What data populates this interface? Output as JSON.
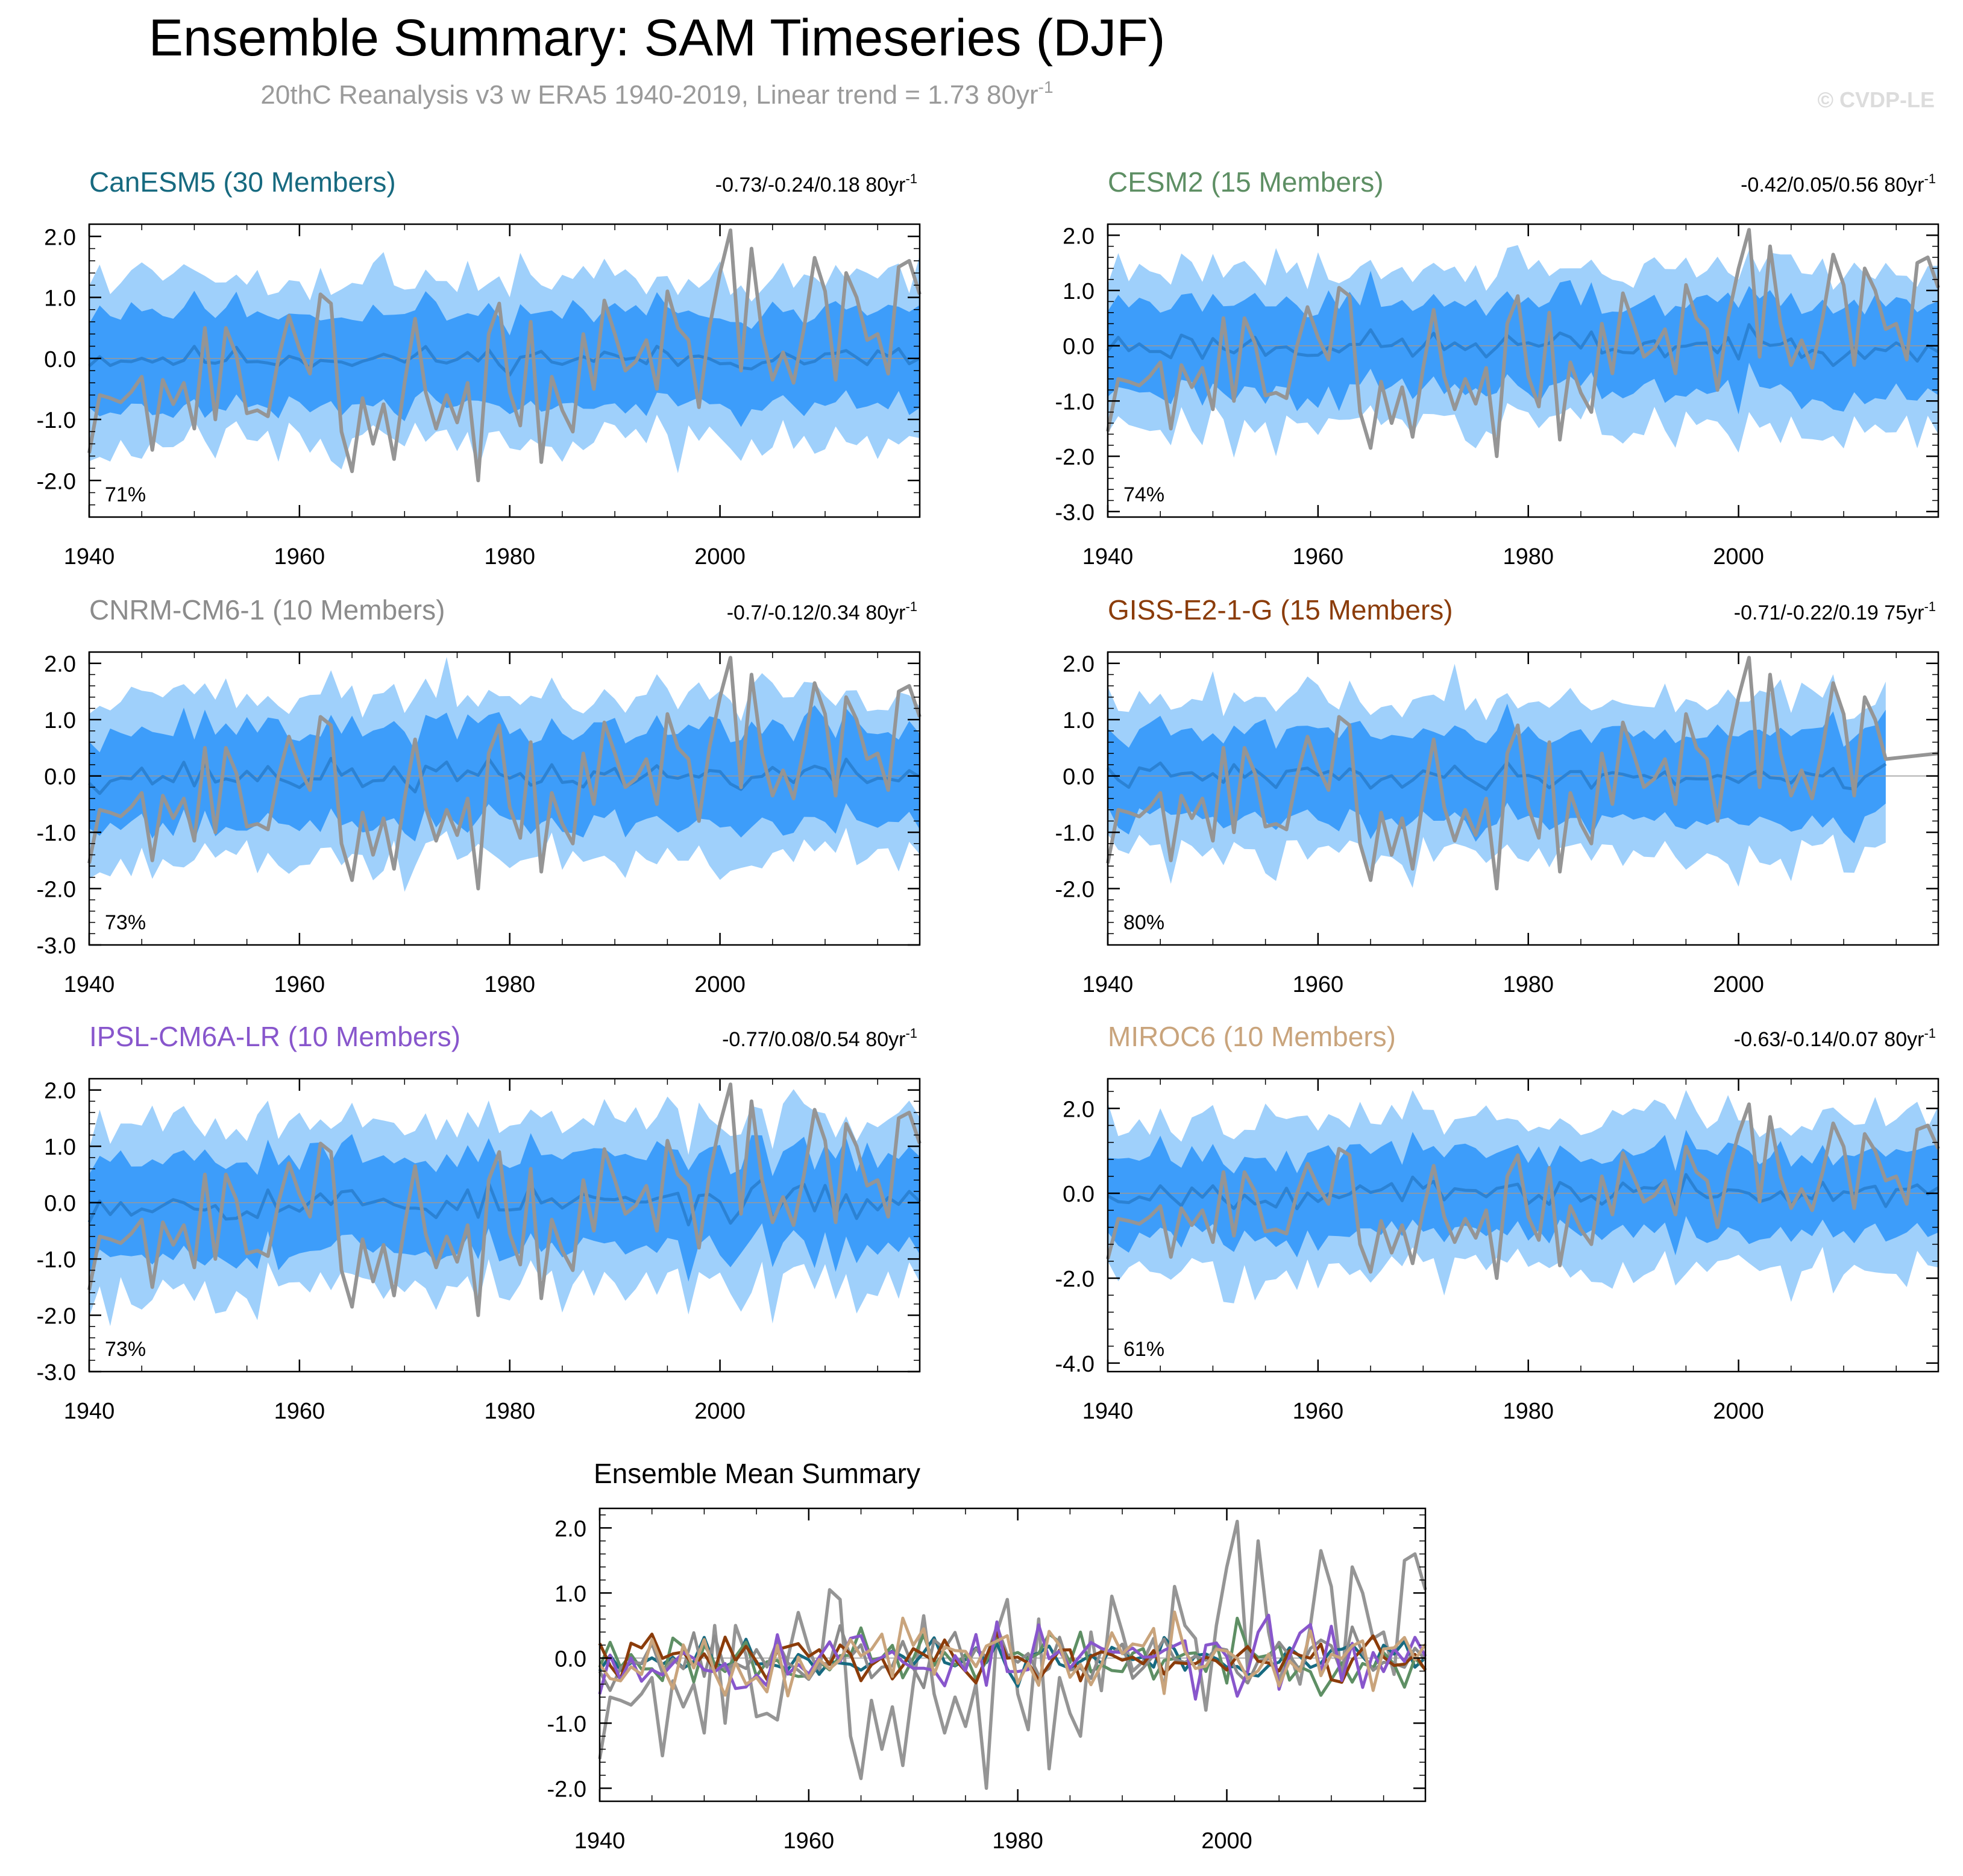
{
  "title": "Ensemble Summary: SAM Timeseries (DJF)",
  "subtitle": {
    "prefix": "20thC Reanalysis v3 w ERA5 1940-2019, Linear trend = 1.73 80yr",
    "exp": "-1"
  },
  "watermark": "© CVDP-LE",
  "colors": {
    "band_outer": "#9fd0fb",
    "band_inner": "#3d9dfa",
    "ens_mean": "#2b82d4",
    "observed": "#959595",
    "zero_line": "#999999",
    "axis": "#000000"
  },
  "chart_data": [
    {
      "type": "line",
      "name": "canesm5-panel",
      "model_label": "CanESM5 (30 Members)",
      "model_color": "#176a80",
      "trend_text": "-0.73/-0.24/0.18 80yr",
      "trend_exp": "-1",
      "percent": "71%",
      "years": [
        1940,
        2019
      ],
      "ylim": [
        -2.6,
        2.2
      ],
      "yticks": [
        2.0,
        1.0,
        0.0,
        -1.0,
        -2.0
      ],
      "ytick_labels": [
        "2.0",
        "1.0",
        "0.0",
        "-1.0",
        "-2.0"
      ],
      "xticks": [
        1940,
        1960,
        1980,
        2000
      ],
      "xtick_labels": [
        "1940",
        "1960",
        "1980",
        "2000"
      ],
      "seed": 11,
      "mean_amp": 0.18,
      "inner_amp": 0.75,
      "outer_amp": 1.35
    },
    {
      "type": "line",
      "name": "cesm2-panel",
      "model_label": "CESM2 (15 Members)",
      "model_color": "#5e8f64",
      "trend_text": "-0.42/0.05/0.56 80yr",
      "trend_exp": "-1",
      "percent": "74%",
      "years": [
        1940,
        2019
      ],
      "ylim": [
        -3.1,
        2.2
      ],
      "yticks": [
        2.0,
        1.0,
        0.0,
        -1.0,
        -2.0,
        -3.0
      ],
      "ytick_labels": [
        "2.0",
        "1.0",
        "0.0",
        "-1.0",
        "-2.0",
        "-3.0"
      ],
      "xticks": [
        1940,
        1960,
        1980,
        2000
      ],
      "xtick_labels": [
        "1940",
        "1960",
        "1980",
        "2000"
      ],
      "seed": 23,
      "mean_amp": 0.25,
      "inner_amp": 0.8,
      "outer_amp": 1.45
    },
    {
      "type": "line",
      "name": "cnrm-panel",
      "model_label": "CNRM-CM6-1 (10 Members)",
      "model_color": "#8c8c8c",
      "trend_text": "-0.7/-0.12/0.34 80yr",
      "trend_exp": "-1",
      "percent": "73%",
      "years": [
        1940,
        2019
      ],
      "ylim": [
        -3.0,
        2.2
      ],
      "yticks": [
        2.0,
        1.0,
        0.0,
        -1.0,
        -2.0,
        -3.0
      ],
      "ytick_labels": [
        "2.0",
        "1.0",
        "0.0",
        "-1.0",
        "-2.0",
        "-3.0"
      ],
      "xticks": [
        1940,
        1960,
        1980,
        2000
      ],
      "xtick_labels": [
        "1940",
        "1960",
        "1980",
        "2000"
      ],
      "seed": 37,
      "mean_amp": 0.25,
      "inner_amp": 0.85,
      "outer_amp": 1.5
    },
    {
      "type": "line",
      "name": "giss-panel",
      "model_label": "GISS-E2-1-G (15 Members)",
      "model_color": "#8b3c0a",
      "trend_text": "-0.71/-0.22/0.19 75yr",
      "trend_exp": "-1",
      "percent": "80%",
      "years": [
        1940,
        2014
      ],
      "ylim": [
        -3.0,
        2.2
      ],
      "yticks": [
        2.0,
        1.0,
        0.0,
        -1.0,
        -2.0
      ],
      "ytick_labels": [
        "2.0",
        "1.0",
        "0.0",
        "-1.0",
        "-2.0"
      ],
      "xticks": [
        1940,
        1960,
        1980,
        2000
      ],
      "xtick_labels": [
        "1940",
        "1960",
        "1980",
        "2000"
      ],
      "seed": 41,
      "mean_amp": 0.2,
      "inner_amp": 0.8,
      "outer_amp": 1.45
    },
    {
      "type": "line",
      "name": "ipsl-panel",
      "model_label": "IPSL-CM6A-LR (10 Members)",
      "model_color": "#8856cc",
      "trend_text": "-0.77/0.08/0.54 80yr",
      "trend_exp": "-1",
      "percent": "73%",
      "years": [
        1940,
        2019
      ],
      "ylim": [
        -3.0,
        2.2
      ],
      "yticks": [
        2.0,
        1.0,
        0.0,
        -1.0,
        -2.0,
        -3.0
      ],
      "ytick_labels": [
        "2.0",
        "1.0",
        "0.0",
        "-1.0",
        "-2.0",
        "-3.0"
      ],
      "xticks": [
        1940,
        1960,
        1980,
        2000
      ],
      "xtick_labels": [
        "1940",
        "1960",
        "1980",
        "2000"
      ],
      "seed": 53,
      "mean_amp": 0.3,
      "inner_amp": 0.85,
      "outer_amp": 1.55
    },
    {
      "type": "line",
      "name": "miroc6-panel",
      "model_label": "MIROC6 (10 Members)",
      "model_color": "#c9a47c",
      "trend_text": "-0.63/-0.14/0.07 80yr",
      "trend_exp": "-1",
      "percent": "61%",
      "years": [
        1940,
        2019
      ],
      "ylim": [
        -4.2,
        2.7
      ],
      "yticks": [
        2.0,
        0.0,
        -2.0,
        -4.0
      ],
      "ytick_labels": [
        "2.0",
        "0.0",
        "-2.0",
        "-4.0"
      ],
      "xticks": [
        1940,
        1960,
        1980,
        2000
      ],
      "xtick_labels": [
        "1940",
        "1960",
        "1980",
        "2000"
      ],
      "seed": 67,
      "mean_amp": 0.3,
      "inner_amp": 0.95,
      "outer_amp": 1.85
    }
  ],
  "ensemble_mean_summary": {
    "title": "Ensemble Mean Summary",
    "years": [
      1940,
      2019
    ],
    "ylim": [
      -2.2,
      2.3
    ],
    "yticks": [
      2.0,
      1.0,
      0.0,
      -1.0,
      -2.0
    ],
    "ytick_labels": [
      "2.0",
      "1.0",
      "0.0",
      "-1.0",
      "-2.0"
    ],
    "xticks": [
      1940,
      1960,
      1980,
      2000
    ],
    "xtick_labels": [
      "1940",
      "1960",
      "1980",
      "2000"
    ],
    "series": [
      {
        "name": "CanESM5",
        "color": "#176a80",
        "seed": 11,
        "amp": 0.18
      },
      {
        "name": "CESM2",
        "color": "#5e8f64",
        "seed": 23,
        "amp": 0.25
      },
      {
        "name": "CNRM-CM6-1",
        "color": "#8c8c8c",
        "seed": 37,
        "amp": 0.25
      },
      {
        "name": "GISS-E2-1-G",
        "color": "#8b3c0a",
        "seed": 41,
        "amp": 0.2
      },
      {
        "name": "IPSL-CM6A-LR",
        "color": "#8856cc",
        "seed": 53,
        "amp": 0.3
      },
      {
        "name": "MIROC6",
        "color": "#c9a47c",
        "seed": 67,
        "amp": 0.3
      }
    ]
  },
  "observed": {
    "name": "20thC Reanalysis v3 w ERA5",
    "start_year": 1940,
    "values": [
      -1.55,
      -0.6,
      -0.65,
      -0.72,
      -0.55,
      -0.3,
      -1.5,
      -0.35,
      -0.75,
      -0.4,
      -1.15,
      0.5,
      -1.0,
      0.5,
      0.05,
      -0.9,
      -0.85,
      -0.95,
      0.0,
      0.7,
      0.15,
      -0.25,
      1.05,
      0.9,
      -1.2,
      -1.85,
      -0.65,
      -1.4,
      -0.75,
      -1.65,
      -0.4,
      0.65,
      -0.55,
      -1.15,
      -0.6,
      -1.05,
      -0.4,
      -2.0,
      0.4,
      0.9,
      -0.55,
      -1.1,
      0.6,
      -1.7,
      -0.3,
      -0.85,
      -1.2,
      0.4,
      -0.5,
      0.95,
      0.4,
      -0.2,
      -0.05,
      0.3,
      -0.5,
      1.1,
      0.5,
      0.3,
      -0.8,
      0.5,
      1.4,
      2.1,
      -0.2,
      1.8,
      0.4,
      -0.35,
      0.1,
      -0.4,
      0.5,
      1.65,
      1.1,
      -0.35,
      1.4,
      1.0,
      0.3,
      0.4,
      -0.25,
      1.5,
      1.6,
      1.05
    ]
  }
}
